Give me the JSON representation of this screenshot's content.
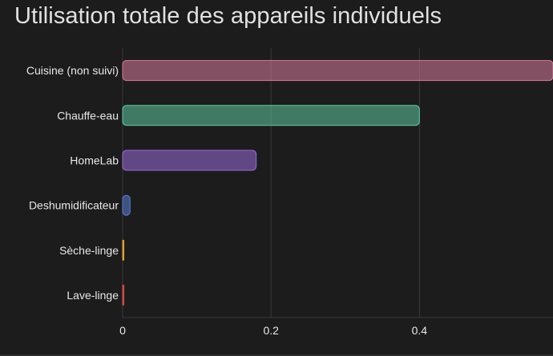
{
  "title": "Utilisation totale des appareils individuels",
  "chart_data": {
    "type": "bar",
    "orientation": "horizontal",
    "title": "Utilisation totale des appareils individuels",
    "categories": [
      "Cuisine (non suivi)",
      "Chauffe-eau",
      "HomeLab",
      "Deshumidificateur",
      "Sèche-linge",
      "Lave-linge"
    ],
    "values": [
      0.58,
      0.4,
      0.18,
      0.01,
      0.0,
      0.0
    ],
    "colors": [
      "#d97a9d",
      "#5fc9a3",
      "#9b6bd9",
      "#5a7fd6",
      "#f2b13c",
      "#e5534b"
    ],
    "xlim": [
      0,
      0.58
    ],
    "xticks": [
      0,
      0.2,
      0.4
    ],
    "xtick_labels": [
      "0",
      "0.2",
      "0.4"
    ],
    "xlabel": "",
    "ylabel": "",
    "grid": true,
    "legend": "none"
  }
}
